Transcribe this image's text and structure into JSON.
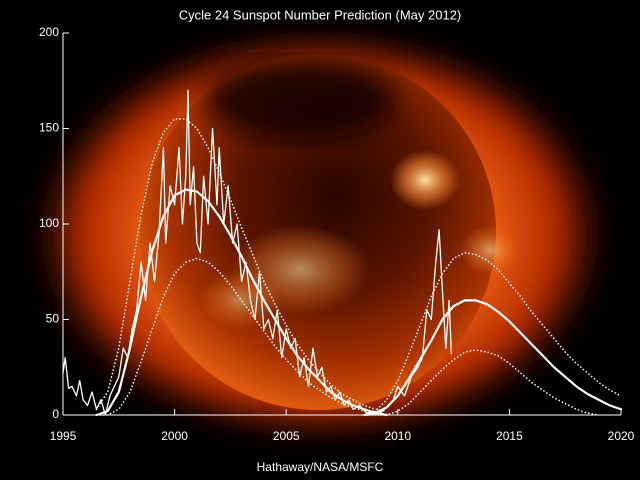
{
  "chart_data": {
    "type": "line",
    "title": "Cycle 24 Sunspot Number Prediction (May 2012)",
    "credit": "Hathaway/NASA/MSFC",
    "xlim": [
      1995,
      2020
    ],
    "xticks": [
      1995,
      2000,
      2005,
      2010,
      2015,
      2020
    ],
    "ylim": [
      0,
      200
    ],
    "yticks": [
      0,
      50,
      100,
      150,
      200
    ],
    "axis_color": "#ffffff",
    "series": [
      {
        "color": "#ffffff",
        "width": 1.3,
        "style": "solid",
        "x": [
          1995.0,
          1995.1,
          1995.25,
          1995.4,
          1995.6,
          1995.75,
          1995.9,
          1996.1,
          1996.3,
          1996.5,
          1996.7,
          1996.9,
          1997.1,
          1997.3,
          1997.5,
          1997.7,
          1997.9,
          1998.1,
          1998.3,
          1998.5,
          1998.7,
          1998.9,
          1999.1,
          1999.3,
          1999.5,
          1999.6,
          1999.8,
          2000.0,
          2000.2,
          2000.35,
          2000.5,
          2000.6,
          2000.7,
          2000.85,
          2001.0,
          2001.15,
          2001.3,
          2001.5,
          2001.7,
          2001.9,
          2002.0,
          2002.2,
          2002.4,
          2002.6,
          2002.8,
          2003.0,
          2003.2,
          2003.4,
          2003.6,
          2003.8,
          2004.0,
          2004.2,
          2004.4,
          2004.6,
          2004.8,
          2005.0,
          2005.2,
          2005.4,
          2005.6,
          2005.8,
          2006.0,
          2006.2,
          2006.4,
          2006.6,
          2006.8,
          2007.0,
          2007.2,
          2007.4,
          2007.6,
          2007.8,
          2008.0,
          2008.3,
          2008.6,
          2008.9,
          2009.2,
          2009.5,
          2009.8,
          2010.0,
          2010.3,
          2010.6,
          2010.9,
          2011.1,
          2011.3,
          2011.5,
          2011.7,
          2011.85,
          2012.0,
          2012.15,
          2012.3,
          2012.4
        ],
        "values": [
          22,
          30,
          14,
          15,
          10,
          18,
          8,
          5,
          12,
          3,
          8,
          0,
          10,
          15,
          20,
          35,
          30,
          45,
          55,
          80,
          60,
          90,
          70,
          95,
          140,
          90,
          120,
          110,
          140,
          100,
          125,
          170,
          110,
          130,
          90,
          85,
          125,
          100,
          150,
          110,
          140,
          100,
          120,
          90,
          100,
          70,
          80,
          60,
          50,
          75,
          45,
          50,
          40,
          55,
          30,
          45,
          35,
          40,
          20,
          30,
          15,
          35,
          20,
          25,
          12,
          15,
          8,
          12,
          5,
          8,
          3,
          5,
          1,
          2,
          1,
          4,
          8,
          15,
          10,
          20,
          25,
          30,
          55,
          50,
          80,
          97,
          65,
          35,
          60,
          32
        ]
      },
      {
        "color": "#ffffff",
        "width": 2.2,
        "style": "solid",
        "x": [
          1996.5,
          1997,
          1997.5,
          1998,
          1998.5,
          1999,
          1999.5,
          2000,
          2000.5,
          2001,
          2001.5,
          2002,
          2002.5,
          2003,
          2003.5,
          2004,
          2004.5,
          2005,
          2005.5,
          2006,
          2006.5,
          2007,
          2007.5,
          2008,
          2008.5,
          2009,
          2009.5
        ],
        "values": [
          0,
          2,
          12,
          35,
          62,
          86,
          104,
          115,
          118,
          117,
          112,
          104,
          94,
          83,
          71,
          60,
          50,
          40,
          31,
          24,
          18,
          12,
          8,
          5,
          3,
          1,
          0
        ]
      },
      {
        "color": "#ffffff",
        "width": 1.6,
        "style": "dotted",
        "x": [
          1996.5,
          1997,
          1997.5,
          1998,
          1998.5,
          1999,
          1999.5,
          2000,
          2000.5,
          2001,
          2001.5,
          2002,
          2002.5,
          2003,
          2003.5,
          2004,
          2004.5,
          2005,
          2005.5,
          2006,
          2006.5,
          2007,
          2007.5,
          2008,
          2008.5,
          2009,
          2009.5
        ],
        "values": [
          3,
          12,
          35,
          70,
          105,
          132,
          148,
          155,
          155,
          150,
          140,
          127,
          113,
          98,
          84,
          70,
          58,
          47,
          37,
          29,
          22,
          16,
          11,
          8,
          5,
          3,
          2
        ]
      },
      {
        "color": "#ffffff",
        "width": 1.6,
        "style": "dotted",
        "x": [
          1996.5,
          1997,
          1997.5,
          1998,
          1998.5,
          1999,
          1999.5,
          2000,
          2000.5,
          2001,
          2001.5,
          2002,
          2002.5,
          2003,
          2003.5,
          2004,
          2004.5,
          2005,
          2005.5,
          2006,
          2006.5,
          2007,
          2007.5,
          2008,
          2008.5,
          2009,
          2009.5
        ],
        "values": [
          0,
          0,
          3,
          12,
          28,
          45,
          62,
          74,
          80,
          82,
          80,
          75,
          68,
          60,
          52,
          44,
          36,
          29,
          23,
          17,
          13,
          9,
          6,
          4,
          2,
          1,
          0
        ]
      },
      {
        "color": "#ffffff",
        "width": 2.2,
        "style": "solid",
        "x": [
          2008.5,
          2009,
          2009.5,
          2010,
          2010.5,
          2011,
          2011.5,
          2012,
          2012.5,
          2013,
          2013.5,
          2014,
          2014.5,
          2015,
          2015.5,
          2016,
          2016.5,
          2017,
          2017.5,
          2018,
          2018.5,
          2019,
          2019.5,
          2020
        ],
        "values": [
          0,
          1,
          4,
          10,
          19,
          29,
          39,
          50,
          57,
          60,
          60,
          58,
          54,
          49,
          43,
          37,
          31,
          25,
          20,
          15,
          11,
          8,
          5,
          3
        ]
      },
      {
        "color": "#ffffff",
        "width": 1.6,
        "style": "dotted",
        "x": [
          2008.5,
          2009,
          2009.5,
          2010,
          2010.5,
          2011,
          2011.5,
          2012,
          2012.5,
          2013,
          2013.5,
          2014,
          2014.5,
          2015,
          2015.5,
          2016,
          2016.5,
          2017,
          2017.5,
          2018,
          2018.5,
          2019,
          2019.5,
          2020
        ],
        "values": [
          0,
          2,
          8,
          18,
          32,
          47,
          62,
          74,
          82,
          85,
          84,
          81,
          76,
          69,
          62,
          54,
          47,
          40,
          33,
          27,
          22,
          17,
          13,
          10
        ]
      },
      {
        "color": "#ffffff",
        "width": 1.6,
        "style": "dotted",
        "x": [
          2008.5,
          2009,
          2009.5,
          2010,
          2010.5,
          2011,
          2011.5,
          2012,
          2012.5,
          2013,
          2013.5,
          2014,
          2014.5,
          2015,
          2015.5,
          2016,
          2016.5,
          2017,
          2017.5,
          2018,
          2018.5,
          2019
        ],
        "values": [
          0,
          0,
          0,
          2,
          6,
          12,
          18,
          24,
          29,
          33,
          34,
          33,
          31,
          27,
          22,
          17,
          13,
          9,
          6,
          3,
          1,
          0
        ]
      }
    ]
  }
}
